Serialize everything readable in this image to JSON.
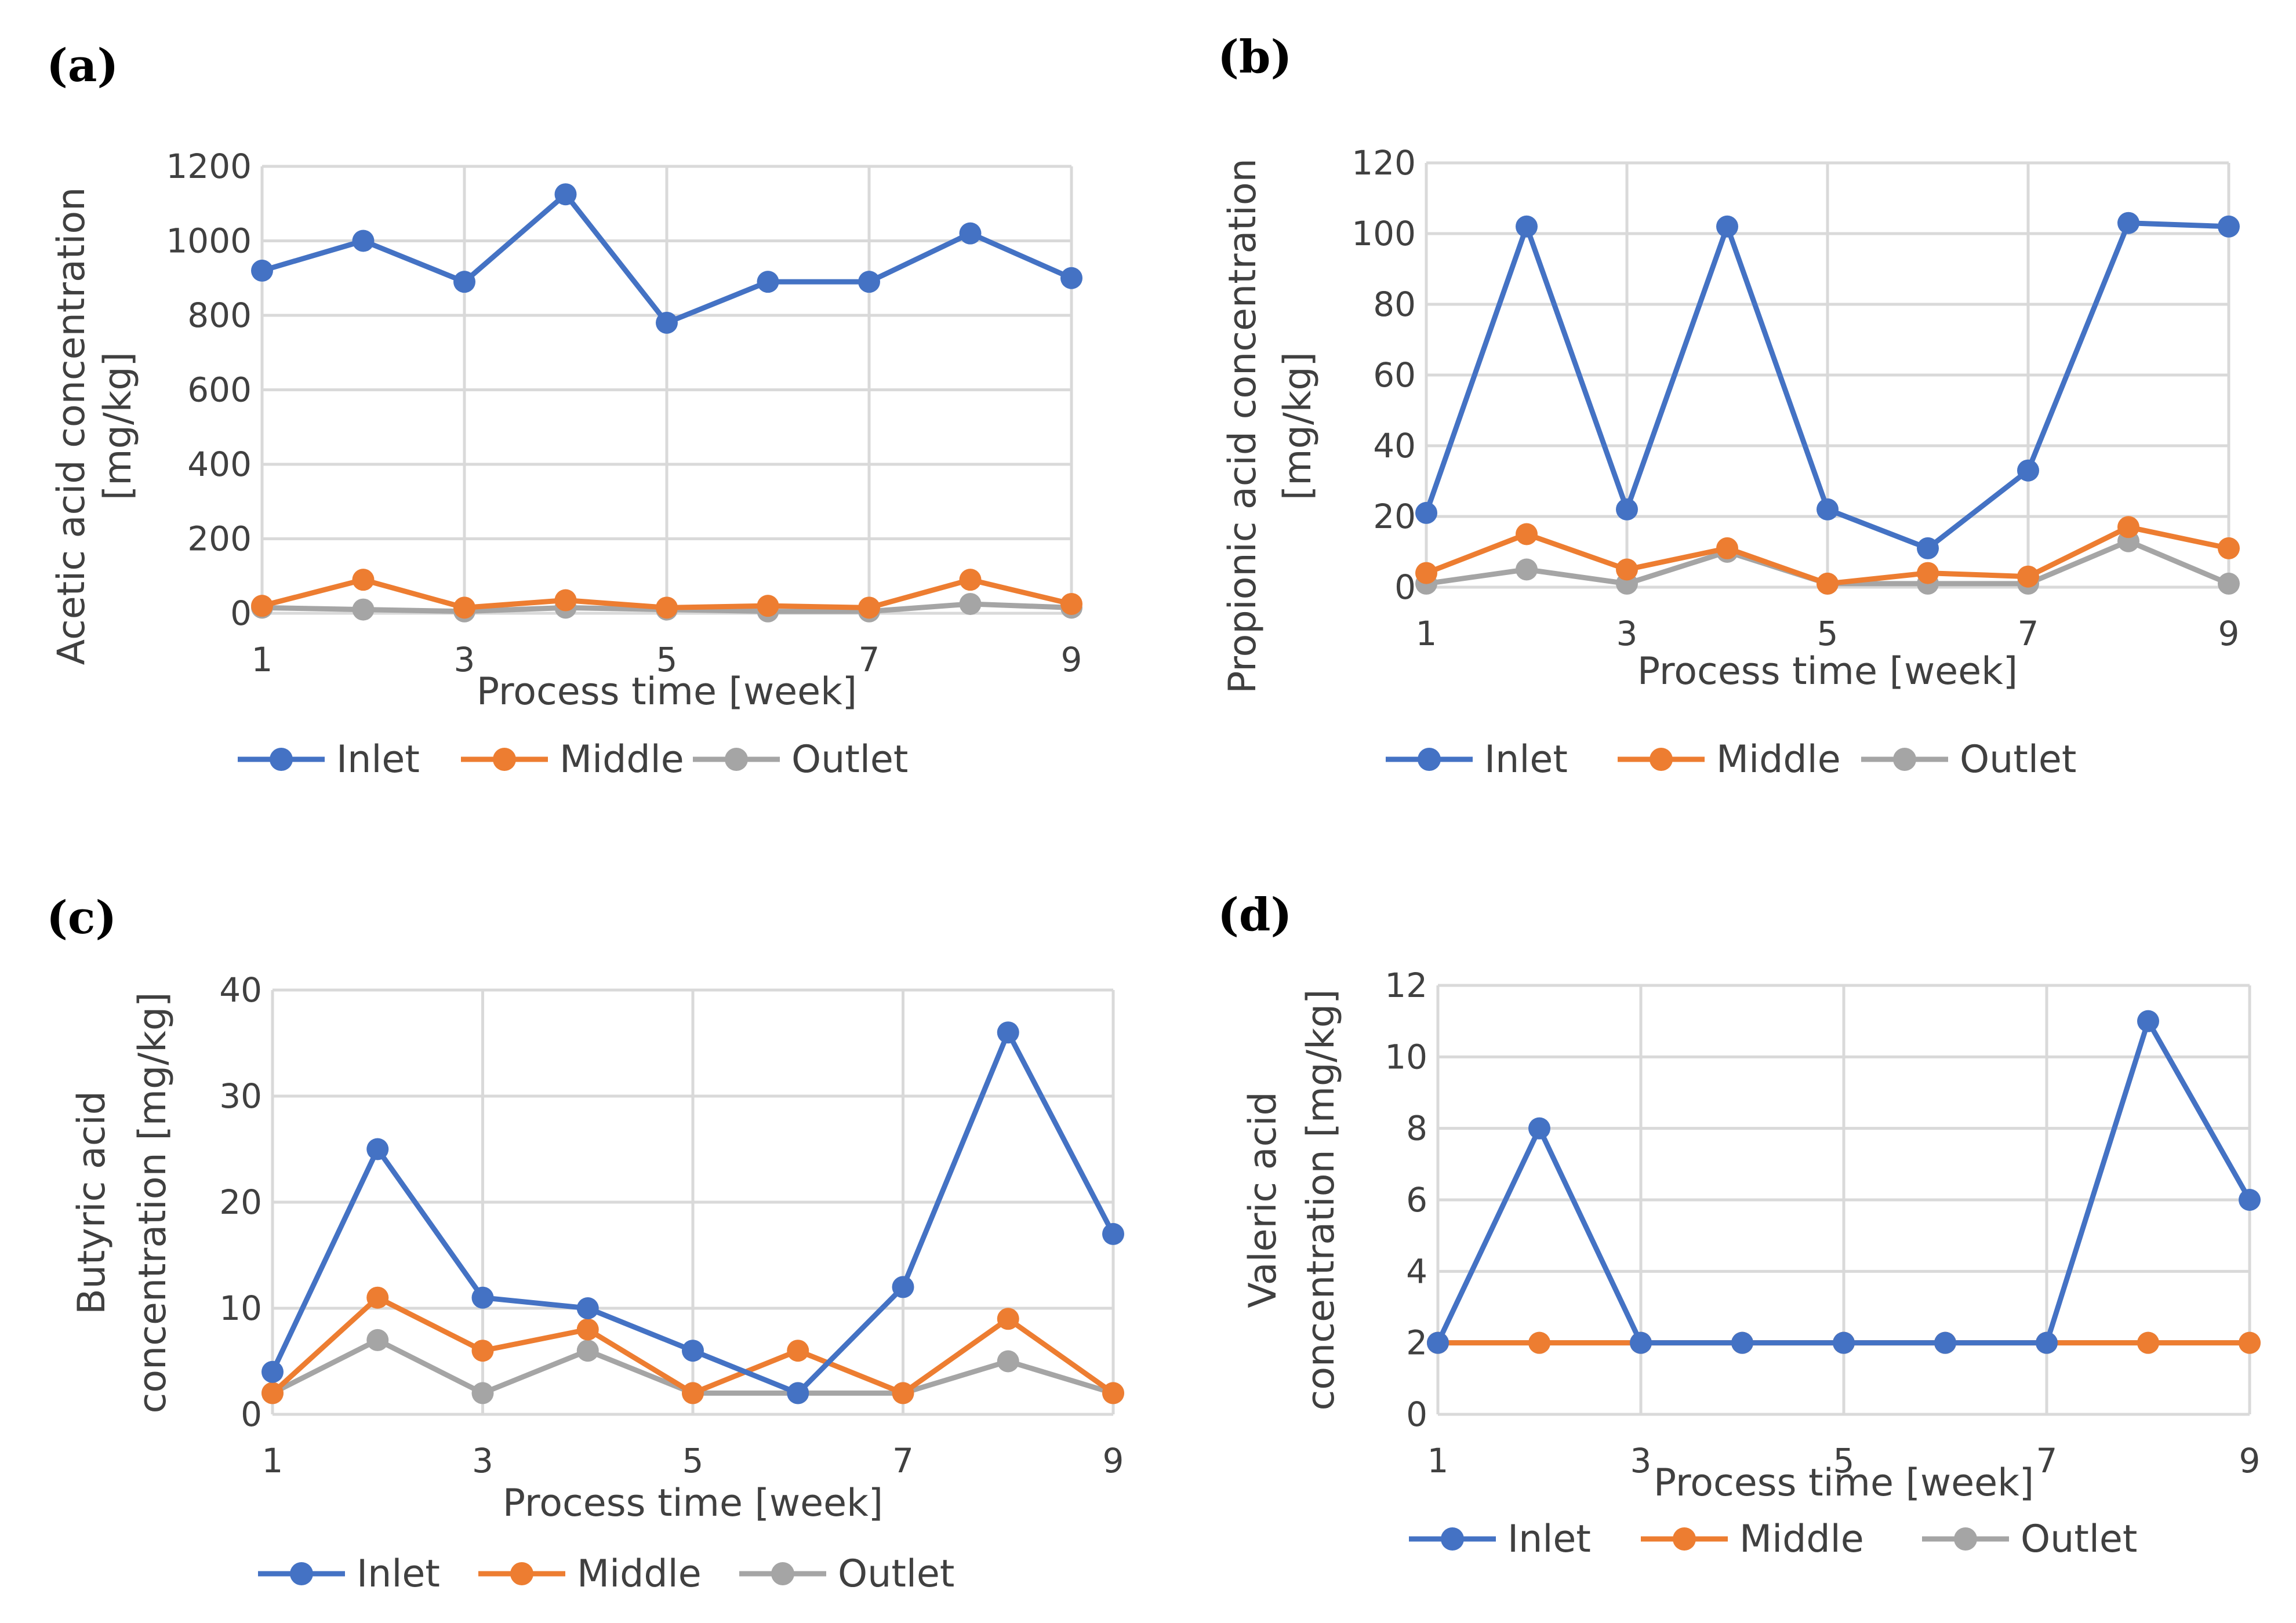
{
  "figure": {
    "colors": {
      "Inlet": "#4472C4",
      "Middle": "#ED7D31",
      "Outlet": "#A5A5A5"
    }
  },
  "chart_data": [
    {
      "panel_label": "(a)",
      "type": "line",
      "x": [
        1,
        2,
        3,
        4,
        5,
        6,
        7,
        8,
        9
      ],
      "xticks": [
        1,
        3,
        5,
        7,
        9
      ],
      "xlabel": "Process time [week]",
      "ylabel_lines": [
        "Acetic acid concentration",
        "[mg/kg]"
      ],
      "ylim": [
        0,
        1200
      ],
      "yticks": [
        0,
        200,
        400,
        600,
        800,
        1000,
        1200
      ],
      "grid": true,
      "legend": "bottom",
      "series": [
        {
          "name": "Inlet",
          "values": [
            920,
            1000,
            890,
            1125,
            780,
            890,
            890,
            1020,
            900
          ]
        },
        {
          "name": "Middle",
          "values": [
            20,
            90,
            15,
            35,
            15,
            20,
            15,
            90,
            25
          ]
        },
        {
          "name": "Outlet",
          "values": [
            15,
            10,
            5,
            15,
            10,
            5,
            5,
            25,
            15
          ]
        }
      ]
    },
    {
      "panel_label": "(b)",
      "type": "line",
      "x": [
        1,
        2,
        3,
        4,
        5,
        6,
        7,
        8,
        9
      ],
      "xticks": [
        1,
        3,
        5,
        7,
        9
      ],
      "xlabel": "Process time [week]",
      "ylabel_lines": [
        "Propionic acid concentration",
        "[mg/kg]"
      ],
      "ylim": [
        0,
        120
      ],
      "yticks": [
        0,
        20,
        40,
        60,
        80,
        100,
        120
      ],
      "grid": true,
      "legend": "bottom",
      "series": [
        {
          "name": "Inlet",
          "values": [
            21,
            102,
            22,
            102,
            22,
            11,
            33,
            103,
            102
          ]
        },
        {
          "name": "Middle",
          "values": [
            4,
            15,
            5,
            11,
            1,
            4,
            3,
            17,
            11
          ]
        },
        {
          "name": "Outlet",
          "values": [
            1,
            5,
            1,
            10,
            1,
            1,
            1,
            13,
            1
          ]
        }
      ]
    },
    {
      "panel_label": "(c)",
      "type": "line",
      "x": [
        1,
        2,
        3,
        4,
        5,
        6,
        7,
        8,
        9
      ],
      "xticks": [
        1,
        3,
        5,
        7,
        9
      ],
      "xlabel": "Process time [week]",
      "ylabel_lines": [
        "Butyric acid",
        "concentration [mg/kg]"
      ],
      "ylim": [
        0,
        40
      ],
      "yticks": [
        0,
        10,
        20,
        30,
        40
      ],
      "grid": true,
      "legend": "bottom",
      "series": [
        {
          "name": "Inlet",
          "values": [
            4,
            25,
            11,
            10,
            6,
            2,
            12,
            36,
            17
          ]
        },
        {
          "name": "Middle",
          "values": [
            2,
            11,
            6,
            8,
            2,
            6,
            2,
            9,
            2
          ]
        },
        {
          "name": "Outlet",
          "values": [
            2,
            7,
            2,
            6,
            2,
            2,
            2,
            5,
            2
          ]
        }
      ]
    },
    {
      "panel_label": "(d)",
      "type": "line",
      "x": [
        1,
        2,
        3,
        4,
        5,
        6,
        7,
        8,
        9
      ],
      "xticks": [
        1,
        3,
        5,
        7,
        9
      ],
      "xlabel": "Process time [week]",
      "ylabel_lines": [
        "Valeric acid",
        "concentration [mg/kg]"
      ],
      "ylim": [
        0,
        12
      ],
      "yticks": [
        0,
        2,
        4,
        6,
        8,
        10,
        12
      ],
      "grid": true,
      "legend": "bottom",
      "series": [
        {
          "name": "Inlet",
          "values": [
            2,
            8,
            2,
            2,
            2,
            2,
            2,
            11,
            6
          ]
        },
        {
          "name": "Middle",
          "values": [
            2,
            2,
            2,
            2,
            2,
            2,
            2,
            2,
            2
          ]
        },
        {
          "name": "Outlet",
          "values": [
            2,
            2,
            2,
            2,
            2,
            2,
            2,
            2,
            2
          ]
        }
      ]
    }
  ]
}
